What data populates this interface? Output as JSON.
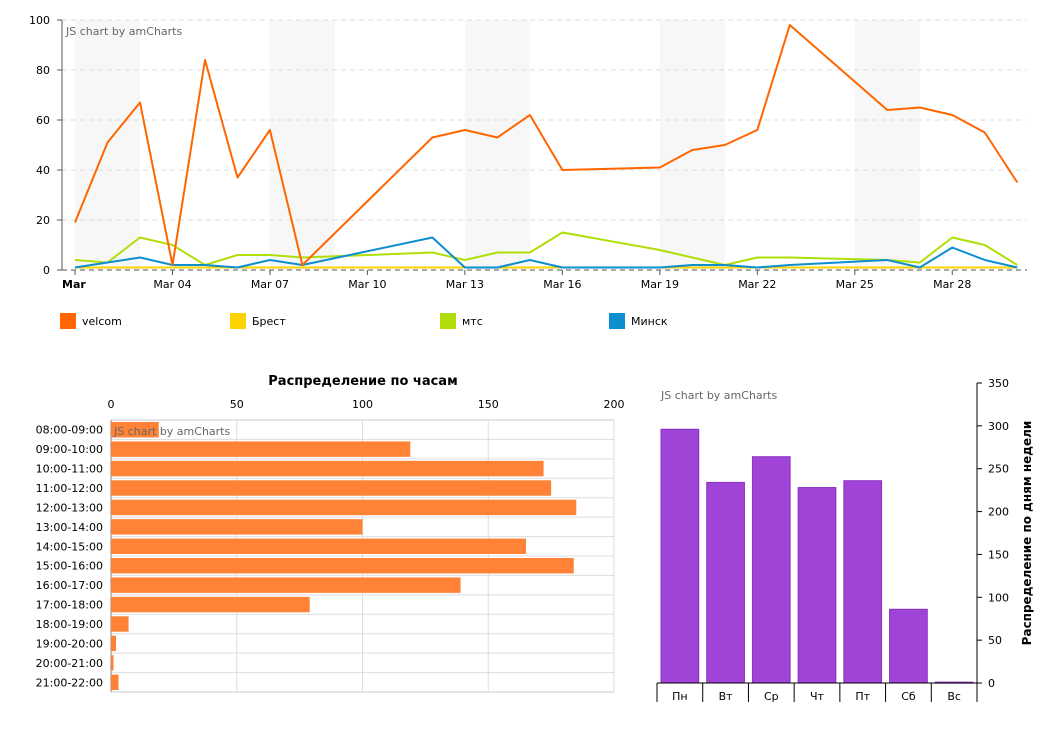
{
  "credit_text": "JS chart by amCharts",
  "chart_data": [
    {
      "type": "line",
      "x_ticks": [
        "Mar",
        "Mar 04",
        "Mar 07",
        "Mar 10",
        "Mar 13",
        "Mar 16",
        "Mar 19",
        "Mar 22",
        "Mar 25",
        "Mar 28"
      ],
      "x": [
        "Mar 01",
        "Mar 02",
        "Mar 03",
        "Mar 04",
        "Mar 05",
        "Mar 06",
        "Mar 07",
        "Mar 08",
        "Mar 12",
        "Mar 13",
        "Mar 14",
        "Mar 15",
        "Mar 16",
        "Mar 19",
        "Mar 20",
        "Mar 21",
        "Mar 22",
        "Mar 23",
        "Mar 26",
        "Mar 27",
        "Mar 28",
        "Mar 29",
        "Mar 30"
      ],
      "ylim": [
        0,
        100
      ],
      "y_ticks": [
        "0",
        "20",
        "40",
        "60",
        "80",
        "100"
      ],
      "grid": true,
      "legend_position": "bottom",
      "series": [
        {
          "name": "velcom",
          "color": "#FF6600",
          "values": [
            19,
            51,
            67,
            2,
            84,
            37,
            56,
            2,
            53,
            56,
            53,
            62,
            40,
            41,
            48,
            50,
            56,
            98,
            64,
            65,
            62,
            55,
            35
          ]
        },
        {
          "name": "Брест",
          "color": "#FCD202",
          "values": [
            1,
            1,
            1,
            1,
            1,
            1,
            1,
            1,
            1,
            1,
            1,
            1,
            1,
            1,
            1,
            1,
            1,
            1,
            1,
            1,
            1,
            1,
            1
          ]
        },
        {
          "name": "мтс",
          "color": "#B0DE09",
          "values": [
            4,
            3,
            13,
            10,
            2,
            6,
            6,
            5,
            7,
            4,
            7,
            7,
            15,
            8,
            5,
            2,
            5,
            5,
            4,
            3,
            13,
            10,
            2
          ]
        },
        {
          "name": "Минск",
          "color": "#0D8ECF",
          "values": [
            1,
            3,
            5,
            2,
            2,
            1,
            4,
            2,
            13,
            1,
            1,
            4,
            1,
            1,
            2,
            2,
            1,
            2,
            4,
            1,
            9,
            4,
            1
          ]
        }
      ]
    },
    {
      "type": "bar",
      "orientation": "horizontal",
      "title": "Распределение по часам",
      "color": "#FF8236",
      "xlim": [
        0,
        200
      ],
      "x_ticks": [
        "0",
        "50",
        "100",
        "150",
        "200"
      ],
      "categories": [
        "08:00-09:00",
        "09:00-10:00",
        "10:00-11:00",
        "11:00-12:00",
        "12:00-13:00",
        "13:00-14:00",
        "14:00-15:00",
        "15:00-16:00",
        "16:00-17:00",
        "17:00-18:00",
        "18:00-19:00",
        "19:00-20:00",
        "20:00-21:00",
        "21:00-22:00"
      ],
      "values": [
        19,
        119,
        172,
        175,
        185,
        100,
        165,
        184,
        139,
        79,
        7,
        2,
        1,
        3
      ]
    },
    {
      "type": "bar",
      "orientation": "vertical",
      "ylabel": "Распределение по дням недели",
      "color": "#A044D7",
      "ylim": [
        0,
        350
      ],
      "y_ticks": [
        "0",
        "50",
        "100",
        "150",
        "200",
        "250",
        "300",
        "350"
      ],
      "categories": [
        "Пн",
        "Вт",
        "Ср",
        "Чт",
        "Пт",
        "Сб",
        "Вс"
      ],
      "values": [
        296,
        234,
        264,
        228,
        236,
        86,
        1
      ]
    }
  ]
}
